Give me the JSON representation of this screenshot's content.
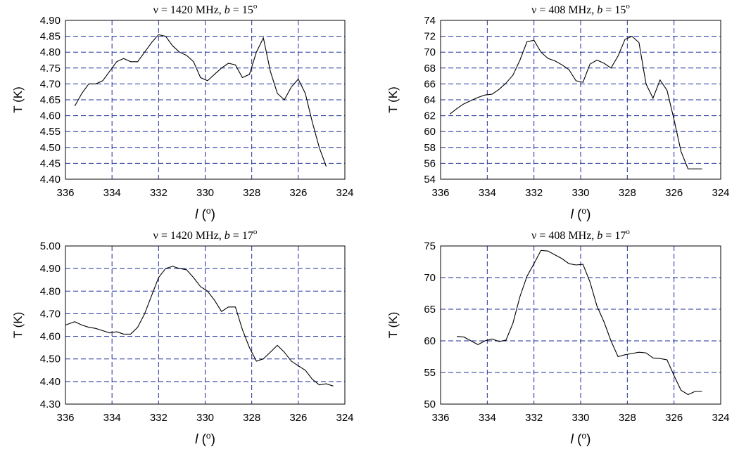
{
  "chart_data": [
    {
      "type": "line",
      "title": {
        "pre": "ν = 1420 MHz,   ",
        "var": "b",
        "mid": " = 15",
        "sup": "o"
      },
      "ylabel": "T (K)",
      "xlabel": {
        "var": "l",
        "open": " (",
        "sup": "o",
        "close": ")"
      },
      "xlim": [
        336,
        324
      ],
      "ylim": [
        4.4,
        4.9
      ],
      "xticks": [
        336,
        334,
        332,
        330,
        328,
        326,
        324
      ],
      "yticks": [
        4.4,
        4.45,
        4.5,
        4.55,
        4.6,
        4.65,
        4.7,
        4.75,
        4.8,
        4.85,
        4.9
      ],
      "ytick_decimals": 2,
      "grid": true,
      "series": [
        {
          "x": [
            335.6,
            335.3,
            335.0,
            334.7,
            334.4,
            334.1,
            333.8,
            333.5,
            333.2,
            332.9,
            332.6,
            332.3,
            332.0,
            331.7,
            331.4,
            331.1,
            330.8,
            330.5,
            330.2,
            329.9,
            329.6,
            329.3,
            329.0,
            328.7,
            328.4,
            328.1,
            327.8,
            327.5,
            327.2,
            326.9,
            326.6,
            326.3,
            326.0,
            325.7,
            325.4,
            325.1,
            324.8
          ],
          "y": [
            4.63,
            4.67,
            4.7,
            4.7,
            4.71,
            4.74,
            4.77,
            4.78,
            4.77,
            4.77,
            4.8,
            4.83,
            4.855,
            4.85,
            4.82,
            4.8,
            4.79,
            4.77,
            4.72,
            4.71,
            4.73,
            4.75,
            4.765,
            4.76,
            4.72,
            4.73,
            4.8,
            4.845,
            4.74,
            4.67,
            4.65,
            4.69,
            4.715,
            4.67,
            4.58,
            4.5,
            4.44
          ]
        }
      ]
    },
    {
      "type": "line",
      "title": {
        "pre": "ν = 408 MHz,   ",
        "var": "b",
        "mid": " = 15",
        "sup": "o"
      },
      "ylabel": "T (K)",
      "xlabel": {
        "var": "l",
        "open": " (",
        "sup": "o",
        "close": ")"
      },
      "xlim": [
        336,
        324
      ],
      "ylim": [
        54,
        74
      ],
      "xticks": [
        336,
        334,
        332,
        330,
        328,
        326,
        324
      ],
      "yticks": [
        54,
        56,
        58,
        60,
        62,
        64,
        66,
        68,
        70,
        72,
        74
      ],
      "ytick_decimals": 0,
      "grid": true,
      "series": [
        {
          "x": [
            335.6,
            335.3,
            335.0,
            334.7,
            334.4,
            334.1,
            333.8,
            333.5,
            333.2,
            332.9,
            332.6,
            332.3,
            332.0,
            331.7,
            331.4,
            331.1,
            330.8,
            330.5,
            330.2,
            329.9,
            329.6,
            329.3,
            329.0,
            328.7,
            328.4,
            328.1,
            327.8,
            327.5,
            327.2,
            326.9,
            326.6,
            326.3,
            326.0,
            325.7,
            325.4,
            325.1,
            324.8
          ],
          "y": [
            62.2,
            62.9,
            63.5,
            63.9,
            64.3,
            64.6,
            64.7,
            65.3,
            66.1,
            67.1,
            69.0,
            71.3,
            71.5,
            70.0,
            69.2,
            68.9,
            68.4,
            67.8,
            66.4,
            66.2,
            68.5,
            69.0,
            68.6,
            68.0,
            69.5,
            71.6,
            72.0,
            71.2,
            66.0,
            64.2,
            66.5,
            65.2,
            61.5,
            57.5,
            55.3,
            55.3,
            55.3
          ]
        }
      ]
    },
    {
      "type": "line",
      "title": {
        "pre": "ν = 1420 MHz,   ",
        "var": "b",
        "mid": " = 17",
        "sup": "o"
      },
      "ylabel": "T (K)",
      "xlabel": {
        "var": "l",
        "open": " (",
        "sup": "o",
        "close": ")"
      },
      "xlim": [
        336,
        324
      ],
      "ylim": [
        4.3,
        5.0
      ],
      "xticks": [
        336,
        334,
        332,
        330,
        328,
        326,
        324
      ],
      "yticks": [
        4.3,
        4.4,
        4.5,
        4.6,
        4.7,
        4.8,
        4.9,
        5.0
      ],
      "ytick_decimals": 2,
      "grid": true,
      "series": [
        {
          "x": [
            336.0,
            335.6,
            335.3,
            335.0,
            334.7,
            334.4,
            334.1,
            333.8,
            333.5,
            333.2,
            332.9,
            332.6,
            332.3,
            332.0,
            331.7,
            331.4,
            331.1,
            330.8,
            330.5,
            330.2,
            329.9,
            329.6,
            329.3,
            329.0,
            328.7,
            328.4,
            328.1,
            327.8,
            327.5,
            327.2,
            326.9,
            326.6,
            326.3,
            326.0,
            325.7,
            325.4,
            325.1,
            324.8,
            324.5
          ],
          "y": [
            4.65,
            4.665,
            4.65,
            4.64,
            4.635,
            4.625,
            4.615,
            4.62,
            4.61,
            4.61,
            4.64,
            4.7,
            4.78,
            4.86,
            4.9,
            4.91,
            4.9,
            4.895,
            4.86,
            4.82,
            4.8,
            4.76,
            4.71,
            4.73,
            4.73,
            4.63,
            4.55,
            4.49,
            4.5,
            4.53,
            4.56,
            4.53,
            4.49,
            4.47,
            4.45,
            4.41,
            4.385,
            4.39,
            4.38
          ]
        }
      ]
    },
    {
      "type": "line",
      "title": {
        "pre": "ν = 408 MHz,   ",
        "var": "b",
        "mid": " = 17",
        "sup": "o"
      },
      "ylabel": "T (K)",
      "xlabel": {
        "var": "l",
        "open": " (",
        "sup": "o",
        "close": ")"
      },
      "xlim": [
        336,
        324
      ],
      "ylim": [
        50,
        75
      ],
      "xticks": [
        336,
        334,
        332,
        330,
        328,
        326,
        324
      ],
      "yticks": [
        50,
        55,
        60,
        65,
        70,
        75
      ],
      "ytick_decimals": 0,
      "grid": true,
      "series": [
        {
          "x": [
            335.3,
            335.0,
            334.7,
            334.4,
            334.1,
            333.8,
            333.5,
            333.2,
            332.9,
            332.6,
            332.3,
            332.0,
            331.7,
            331.4,
            331.1,
            330.8,
            330.5,
            330.2,
            329.9,
            329.6,
            329.3,
            329.0,
            328.7,
            328.4,
            328.1,
            327.8,
            327.5,
            327.2,
            326.9,
            326.6,
            326.3,
            326.0,
            325.7,
            325.4,
            325.1,
            324.8
          ],
          "y": [
            60.7,
            60.6,
            60.0,
            59.4,
            60.0,
            60.3,
            59.9,
            60.1,
            62.8,
            67.0,
            70.2,
            72.2,
            74.3,
            74.2,
            73.6,
            73.0,
            72.2,
            72.0,
            72.1,
            69.3,
            65.5,
            63.0,
            60.0,
            57.5,
            57.8,
            58.0,
            58.2,
            58.1,
            57.3,
            57.2,
            57.0,
            54.5,
            52.2,
            51.5,
            52.0,
            52.0
          ]
        }
      ]
    }
  ]
}
